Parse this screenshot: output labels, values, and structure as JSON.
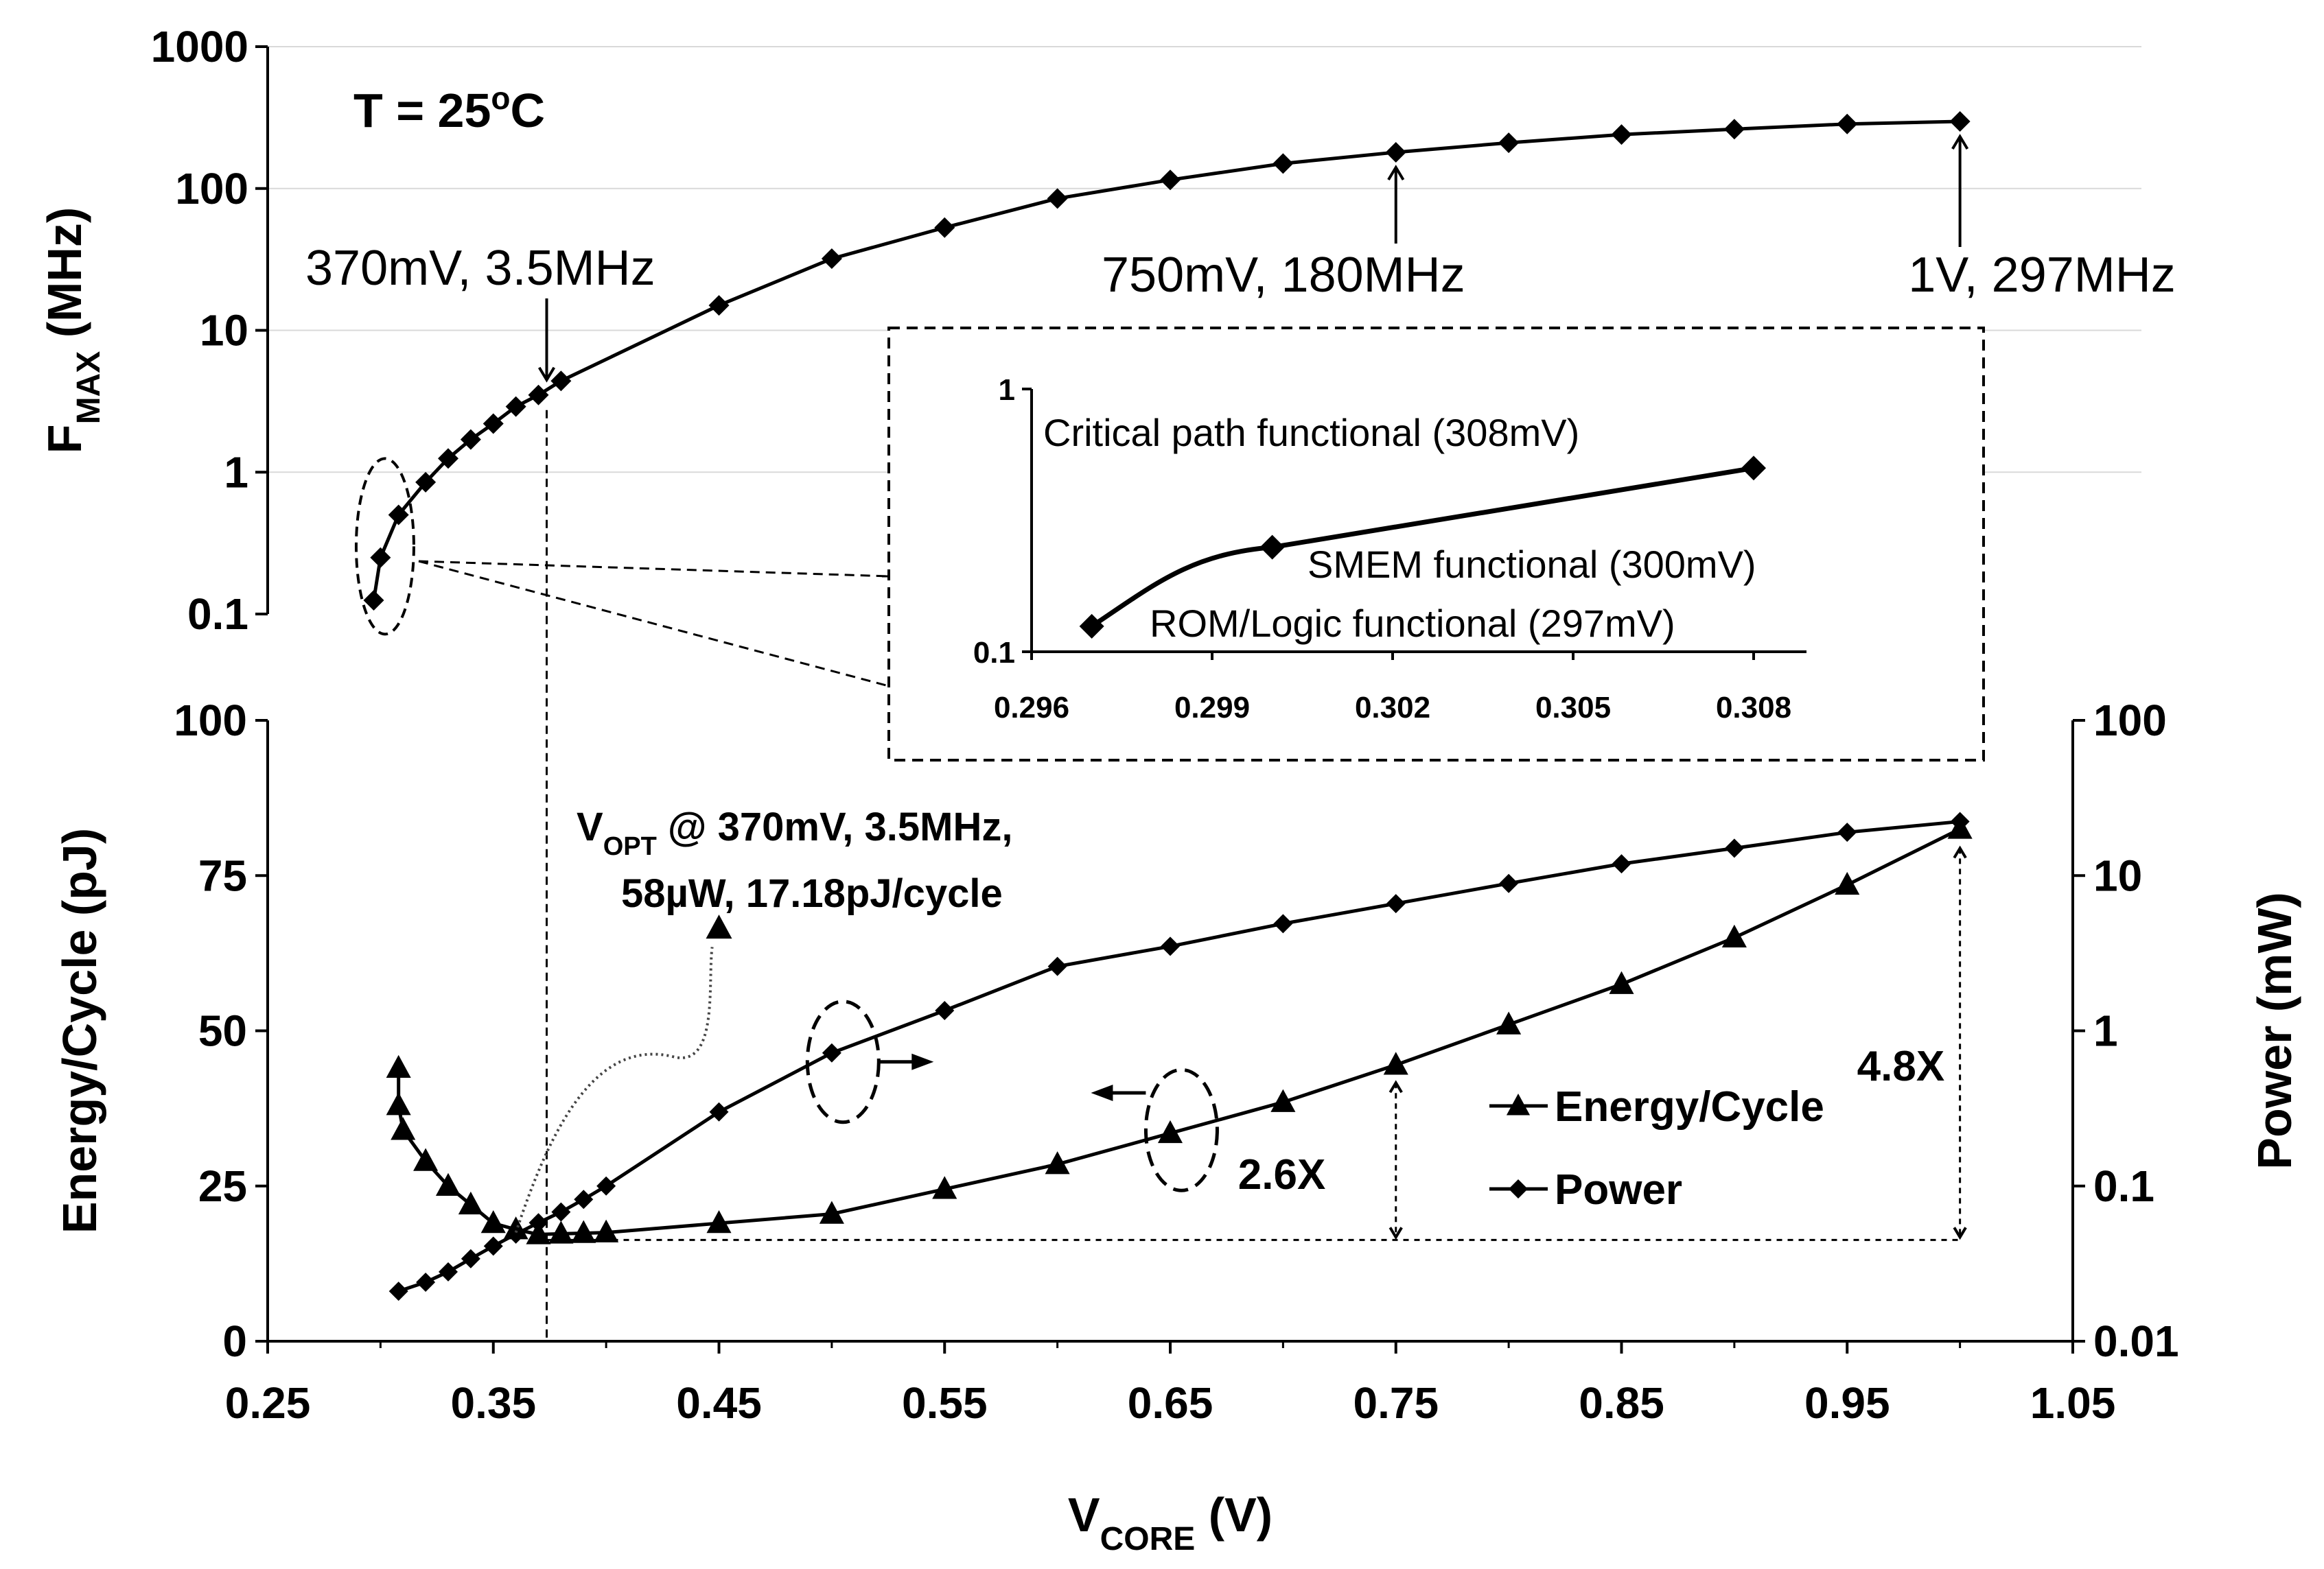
{
  "chart_data": [
    {
      "id": "fmax",
      "type": "line",
      "title": "T = 25",
      "title_sup": "o",
      "title_tail": "C",
      "ylabel_main": "F",
      "ylabel_sub": "MAX",
      "ylabel_tail": " (MHz)",
      "yscale": "log",
      "ylim": [
        0.1,
        1000
      ],
      "xlim": [
        0.25,
        1.05
      ],
      "yticks": [
        "1000",
        "100",
        "10",
        "1",
        "0.1"
      ],
      "x": [
        0.297,
        0.3,
        0.308,
        0.32,
        0.33,
        0.34,
        0.35,
        0.36,
        0.37,
        0.38,
        0.45,
        0.5,
        0.55,
        0.6,
        0.65,
        0.7,
        0.75,
        0.8,
        0.85,
        0.9,
        0.95,
        1.0
      ],
      "y": [
        0.125,
        0.25,
        0.5,
        0.85,
        1.25,
        1.7,
        2.2,
        2.9,
        3.5,
        4.4,
        15,
        32,
        53,
        85,
        115,
        150,
        180,
        210,
        240,
        262,
        285,
        297
      ],
      "annotations": [
        "370mV, 3.5MHz",
        "750mV, 180MHz",
        "1V, 297MHz"
      ]
    },
    {
      "id": "inset",
      "type": "line",
      "yscale": "log",
      "ylim": [
        0.1,
        1
      ],
      "xlim": [
        0.2955,
        0.3095
      ],
      "yticks": [
        "1",
        "0.1"
      ],
      "xticks": [
        "0.296",
        "0.299",
        "0.302",
        "0.305",
        "0.308"
      ],
      "x": [
        0.297,
        0.3,
        0.308
      ],
      "y": [
        0.125,
        0.25,
        0.5
      ],
      "annotations": [
        "Critical path functional (308mV)",
        "SMEM functional (300mV)",
        "ROM/Logic functional (297mV)"
      ]
    },
    {
      "id": "energy-power",
      "type": "line",
      "xlabel_main": "V",
      "xlabel_sub": "CORE",
      "xlabel_tail": " (V)",
      "xticks": [
        "0.25",
        "0.35",
        "0.45",
        "0.55",
        "0.65",
        "0.75",
        "0.85",
        "0.95",
        "1.05"
      ],
      "xlim": [
        0.25,
        1.05
      ],
      "ylabel_left": "Energy/Cycle (pJ)",
      "ylim_left": [
        0,
        100
      ],
      "yticks_left": [
        "100",
        "75",
        "50",
        "25",
        "0"
      ],
      "ylabel_right": "Power (mW)",
      "yscale_right": "log",
      "ylim_right": [
        0.01,
        100
      ],
      "yticks_right": [
        "100",
        "10",
        "1",
        "0.1",
        "0.01"
      ],
      "series": [
        {
          "name": "Energy/Cycle",
          "axis": "left",
          "marker": "triangle",
          "x": [
            0.308,
            0.308,
            0.31,
            0.32,
            0.33,
            0.34,
            0.35,
            0.36,
            0.37,
            0.38,
            0.39,
            0.4,
            0.45,
            0.5,
            0.55,
            0.6,
            0.65,
            0.7,
            0.75,
            0.8,
            0.85,
            0.9,
            0.95,
            1.0
          ],
          "values": [
            44,
            38,
            34,
            29,
            25,
            22,
            19,
            18,
            17.2,
            17.3,
            17.4,
            17.5,
            19,
            20.5,
            24.5,
            28.5,
            33.5,
            38.5,
            44.5,
            51,
            57.5,
            65,
            73.5,
            82.5
          ]
        },
        {
          "name": "Power",
          "axis": "right",
          "marker": "diamond",
          "x": [
            0.308,
            0.32,
            0.33,
            0.34,
            0.35,
            0.36,
            0.37,
            0.38,
            0.39,
            0.4,
            0.45,
            0.5,
            0.55,
            0.6,
            0.65,
            0.7,
            0.75,
            0.8,
            0.85,
            0.9,
            0.95,
            1.0
          ],
          "values": [
            0.021,
            0.024,
            0.028,
            0.034,
            0.041,
            0.049,
            0.058,
            0.068,
            0.082,
            0.1,
            0.3,
            0.72,
            1.35,
            2.6,
            3.5,
            4.9,
            6.6,
            8.9,
            11.9,
            15,
            19,
            22.3
          ]
        }
      ],
      "annotation_vopt_main": "V",
      "annotation_vopt_sub": "OPT",
      "annotation_vopt_tail": " @ 370mV, 3.5MHz,",
      "annotation_vopt_line2": "58µW, 17.18pJ/cycle",
      "annotation_26x": "2.6X",
      "annotation_48x": "4.8X",
      "legend_position": "bottom-right"
    }
  ]
}
